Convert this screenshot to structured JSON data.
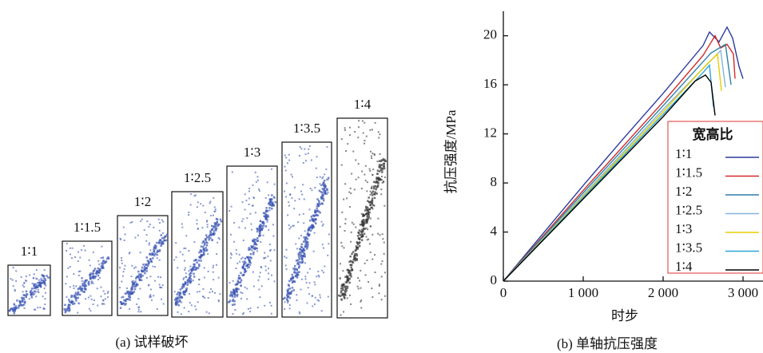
{
  "figure_a": {
    "caption": "(a) 试样破坏",
    "labels": [
      "1∶1",
      "1∶1.5",
      "1∶2",
      "1∶2.5",
      "1∶3",
      "1∶3.5",
      "1∶4"
    ]
  },
  "chart_data": {
    "type": "line",
    "caption": "(b) 单轴抗压强度",
    "x_label": "时步",
    "y_label": "抗压强度/MPa",
    "legend_title": "宽高比",
    "legend": "lower right",
    "xlim": [
      0,
      3250
    ],
    "ylim": [
      0,
      22
    ],
    "xticks": [
      0,
      {
        "value": 1000,
        "label": "1 000"
      },
      {
        "value": 2000,
        "label": "2 000"
      },
      {
        "value": 3000,
        "label": "3 000"
      }
    ],
    "yticks": [
      0,
      4,
      8,
      12,
      16,
      20
    ],
    "series": [
      {
        "name": "1∶1",
        "color": "#2b3c9e",
        "x": [
          0,
          500,
          1000,
          1500,
          2000,
          2500,
          2580,
          2700,
          2800,
          2870,
          2950,
          3000
        ],
        "values": [
          0,
          3.9,
          7.8,
          11.6,
          15.3,
          19.2,
          20.3,
          19.5,
          20.7,
          19.8,
          17.5,
          16.5
        ]
      },
      {
        "name": "1∶1.5",
        "color": "#d42a2a",
        "x": [
          0,
          1000,
          2000,
          2500,
          2650,
          2720,
          2800,
          2880,
          2900
        ],
        "values": [
          0,
          7.4,
          14.6,
          18.4,
          20.0,
          19.0,
          19.3,
          18.5,
          16.5
        ]
      },
      {
        "name": "1∶2",
        "color": "#2f7fa8",
        "x": [
          0,
          1000,
          2000,
          2600,
          2780,
          2850
        ],
        "values": [
          0,
          7.2,
          14.3,
          18.6,
          19.3,
          16.0
        ]
      },
      {
        "name": "1∶2.5",
        "color": "#86b4dc",
        "x": [
          0,
          1000,
          2000,
          2600,
          2720,
          2780
        ],
        "values": [
          0,
          7.0,
          14.0,
          18.0,
          18.8,
          15.8
        ]
      },
      {
        "name": "1∶3",
        "color": "#e6cf00",
        "x": [
          0,
          1000,
          2000,
          2550,
          2680,
          2730
        ],
        "values": [
          0,
          6.9,
          13.8,
          17.7,
          18.5,
          15.5
        ]
      },
      {
        "name": "1∶3.5",
        "color": "#2aa6d8",
        "x": [
          0,
          1000,
          2000,
          2500,
          2580,
          2630
        ],
        "values": [
          0,
          6.8,
          13.6,
          17.0,
          17.6,
          14.2
        ]
      },
      {
        "name": "1∶4",
        "color": "#000000",
        "x": [
          0,
          1000,
          2000,
          2400,
          2530,
          2600,
          2650
        ],
        "values": [
          0,
          6.7,
          13.4,
          16.3,
          16.8,
          16.2,
          13.5
        ]
      }
    ]
  }
}
